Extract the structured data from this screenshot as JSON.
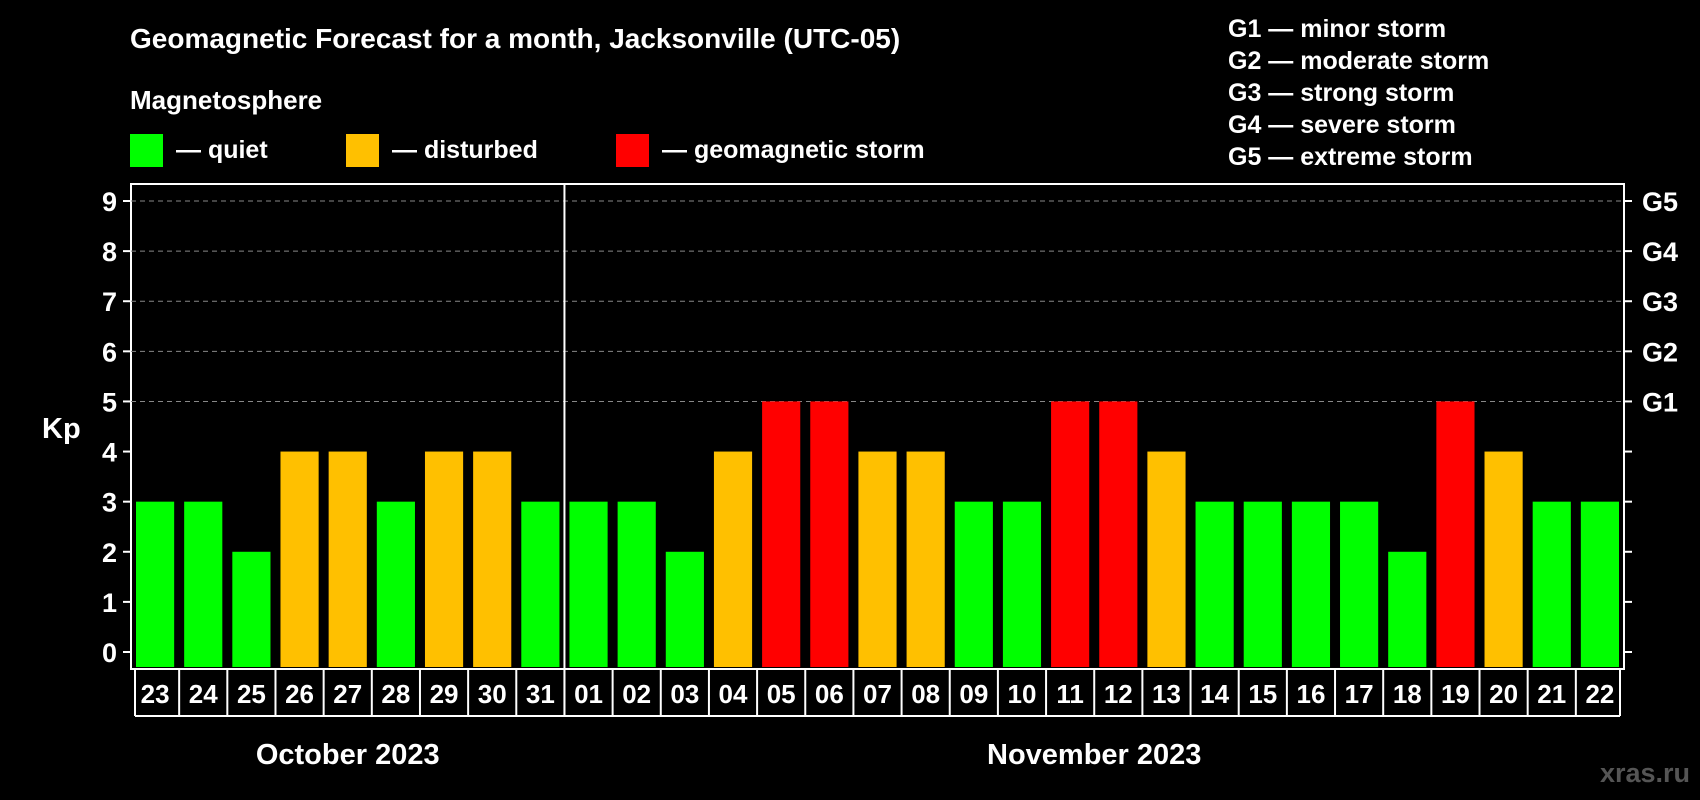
{
  "colors": {
    "quiet": "#00ff00",
    "disturbed": "#ffc000",
    "storm": "#ff0000",
    "background": "#000000",
    "grid": "#888888",
    "watermark": "#555555"
  },
  "header": {
    "title": "Geomagnetic Forecast for a month, Jacksonville (UTC-05)",
    "subtitle": "Magnetosphere"
  },
  "legend": [
    {
      "key": "quiet",
      "label": "— quiet"
    },
    {
      "key": "disturbed",
      "label": "— disturbed"
    },
    {
      "key": "storm",
      "label": "— geomagnetic storm"
    }
  ],
  "g_legend": [
    "G1 — minor storm",
    "G2 — moderate storm",
    "G3 — strong storm",
    "G4 — severe storm",
    "G5 — extreme storm"
  ],
  "watermark": "xras.ru",
  "chart_data": {
    "type": "bar",
    "title": "Geomagnetic Forecast for a month, Jacksonville (UTC-05)",
    "ylabel": "Kp",
    "ylim": [
      0,
      9
    ],
    "yticks": [
      "0",
      "1",
      "2",
      "3",
      "4",
      "5",
      "6",
      "7",
      "8",
      "9"
    ],
    "right_axis_labels": [
      {
        "kp": 5,
        "label": "G1"
      },
      {
        "kp": 6,
        "label": "G2"
      },
      {
        "kp": 7,
        "label": "G3"
      },
      {
        "kp": 8,
        "label": "G4"
      },
      {
        "kp": 9,
        "label": "G5"
      }
    ],
    "grid": "dashed horizontal at 5-9",
    "months": [
      {
        "label": "October 2023",
        "days": 9
      },
      {
        "label": "November 2023",
        "days": 22
      }
    ],
    "categories": [
      "23",
      "24",
      "25",
      "26",
      "27",
      "28",
      "29",
      "30",
      "31",
      "01",
      "02",
      "03",
      "04",
      "05",
      "06",
      "07",
      "08",
      "09",
      "10",
      "11",
      "12",
      "13",
      "14",
      "15",
      "16",
      "17",
      "18",
      "19",
      "20",
      "21",
      "22"
    ],
    "values": [
      3,
      3,
      2,
      4,
      4,
      3,
      4,
      4,
      3,
      3,
      3,
      2,
      4,
      5,
      5,
      4,
      4,
      3,
      3,
      5,
      5,
      4,
      3,
      3,
      3,
      3,
      2,
      5,
      4,
      3,
      3
    ],
    "level": [
      "quiet",
      "quiet",
      "quiet",
      "disturbed",
      "disturbed",
      "quiet",
      "disturbed",
      "disturbed",
      "quiet",
      "quiet",
      "quiet",
      "quiet",
      "disturbed",
      "storm",
      "storm",
      "disturbed",
      "disturbed",
      "quiet",
      "quiet",
      "storm",
      "storm",
      "disturbed",
      "quiet",
      "quiet",
      "quiet",
      "quiet",
      "quiet",
      "storm",
      "disturbed",
      "quiet",
      "quiet"
    ]
  }
}
